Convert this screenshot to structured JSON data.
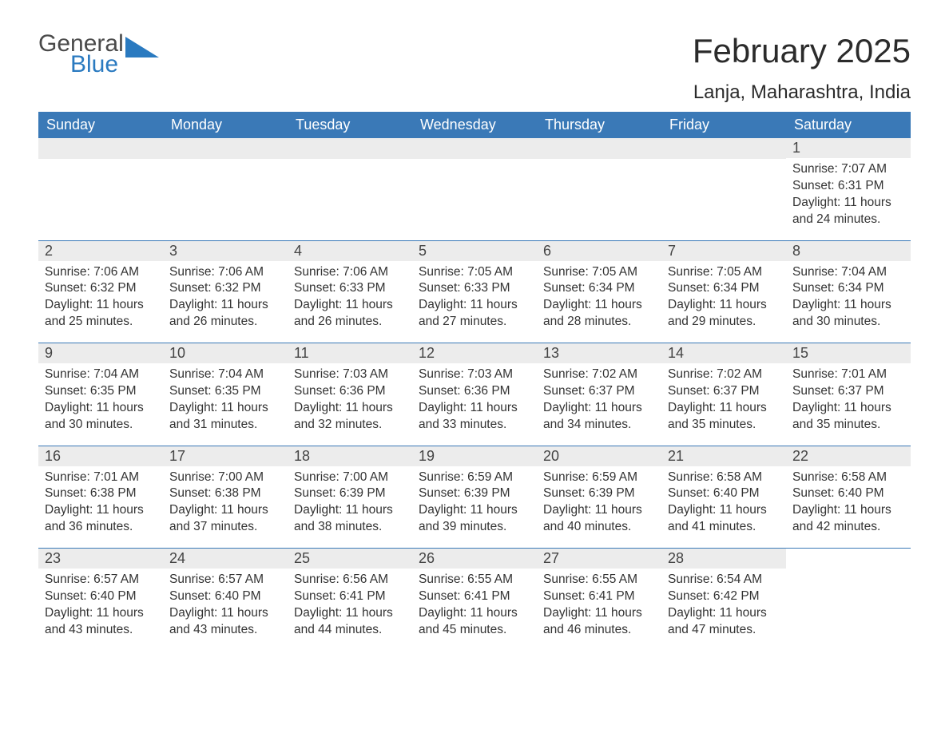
{
  "brand": {
    "word1": "General",
    "word2": "Blue",
    "accent_color": "#2a7ac0"
  },
  "title": "February 2025",
  "location": "Lanja, Maharashtra, India",
  "colors": {
    "header_bg": "#3a79b7",
    "header_text": "#ffffff",
    "daynum_bg": "#ececec",
    "text": "#333333",
    "rule": "#3a79b7",
    "page_bg": "#ffffff"
  },
  "day_headers": [
    "Sunday",
    "Monday",
    "Tuesday",
    "Wednesday",
    "Thursday",
    "Friday",
    "Saturday"
  ],
  "weeks": [
    [
      null,
      null,
      null,
      null,
      null,
      null,
      {
        "n": "1",
        "sunrise": "Sunrise: 7:07 AM",
        "sunset": "Sunset: 6:31 PM",
        "daylight": "Daylight: 11 hours and 24 minutes."
      }
    ],
    [
      {
        "n": "2",
        "sunrise": "Sunrise: 7:06 AM",
        "sunset": "Sunset: 6:32 PM",
        "daylight": "Daylight: 11 hours and 25 minutes."
      },
      {
        "n": "3",
        "sunrise": "Sunrise: 7:06 AM",
        "sunset": "Sunset: 6:32 PM",
        "daylight": "Daylight: 11 hours and 26 minutes."
      },
      {
        "n": "4",
        "sunrise": "Sunrise: 7:06 AM",
        "sunset": "Sunset: 6:33 PM",
        "daylight": "Daylight: 11 hours and 26 minutes."
      },
      {
        "n": "5",
        "sunrise": "Sunrise: 7:05 AM",
        "sunset": "Sunset: 6:33 PM",
        "daylight": "Daylight: 11 hours and 27 minutes."
      },
      {
        "n": "6",
        "sunrise": "Sunrise: 7:05 AM",
        "sunset": "Sunset: 6:34 PM",
        "daylight": "Daylight: 11 hours and 28 minutes."
      },
      {
        "n": "7",
        "sunrise": "Sunrise: 7:05 AM",
        "sunset": "Sunset: 6:34 PM",
        "daylight": "Daylight: 11 hours and 29 minutes."
      },
      {
        "n": "8",
        "sunrise": "Sunrise: 7:04 AM",
        "sunset": "Sunset: 6:34 PM",
        "daylight": "Daylight: 11 hours and 30 minutes."
      }
    ],
    [
      {
        "n": "9",
        "sunrise": "Sunrise: 7:04 AM",
        "sunset": "Sunset: 6:35 PM",
        "daylight": "Daylight: 11 hours and 30 minutes."
      },
      {
        "n": "10",
        "sunrise": "Sunrise: 7:04 AM",
        "sunset": "Sunset: 6:35 PM",
        "daylight": "Daylight: 11 hours and 31 minutes."
      },
      {
        "n": "11",
        "sunrise": "Sunrise: 7:03 AM",
        "sunset": "Sunset: 6:36 PM",
        "daylight": "Daylight: 11 hours and 32 minutes."
      },
      {
        "n": "12",
        "sunrise": "Sunrise: 7:03 AM",
        "sunset": "Sunset: 6:36 PM",
        "daylight": "Daylight: 11 hours and 33 minutes."
      },
      {
        "n": "13",
        "sunrise": "Sunrise: 7:02 AM",
        "sunset": "Sunset: 6:37 PM",
        "daylight": "Daylight: 11 hours and 34 minutes."
      },
      {
        "n": "14",
        "sunrise": "Sunrise: 7:02 AM",
        "sunset": "Sunset: 6:37 PM",
        "daylight": "Daylight: 11 hours and 35 minutes."
      },
      {
        "n": "15",
        "sunrise": "Sunrise: 7:01 AM",
        "sunset": "Sunset: 6:37 PM",
        "daylight": "Daylight: 11 hours and 35 minutes."
      }
    ],
    [
      {
        "n": "16",
        "sunrise": "Sunrise: 7:01 AM",
        "sunset": "Sunset: 6:38 PM",
        "daylight": "Daylight: 11 hours and 36 minutes."
      },
      {
        "n": "17",
        "sunrise": "Sunrise: 7:00 AM",
        "sunset": "Sunset: 6:38 PM",
        "daylight": "Daylight: 11 hours and 37 minutes."
      },
      {
        "n": "18",
        "sunrise": "Sunrise: 7:00 AM",
        "sunset": "Sunset: 6:39 PM",
        "daylight": "Daylight: 11 hours and 38 minutes."
      },
      {
        "n": "19",
        "sunrise": "Sunrise: 6:59 AM",
        "sunset": "Sunset: 6:39 PM",
        "daylight": "Daylight: 11 hours and 39 minutes."
      },
      {
        "n": "20",
        "sunrise": "Sunrise: 6:59 AM",
        "sunset": "Sunset: 6:39 PM",
        "daylight": "Daylight: 11 hours and 40 minutes."
      },
      {
        "n": "21",
        "sunrise": "Sunrise: 6:58 AM",
        "sunset": "Sunset: 6:40 PM",
        "daylight": "Daylight: 11 hours and 41 minutes."
      },
      {
        "n": "22",
        "sunrise": "Sunrise: 6:58 AM",
        "sunset": "Sunset: 6:40 PM",
        "daylight": "Daylight: 11 hours and 42 minutes."
      }
    ],
    [
      {
        "n": "23",
        "sunrise": "Sunrise: 6:57 AM",
        "sunset": "Sunset: 6:40 PM",
        "daylight": "Daylight: 11 hours and 43 minutes."
      },
      {
        "n": "24",
        "sunrise": "Sunrise: 6:57 AM",
        "sunset": "Sunset: 6:40 PM",
        "daylight": "Daylight: 11 hours and 43 minutes."
      },
      {
        "n": "25",
        "sunrise": "Sunrise: 6:56 AM",
        "sunset": "Sunset: 6:41 PM",
        "daylight": "Daylight: 11 hours and 44 minutes."
      },
      {
        "n": "26",
        "sunrise": "Sunrise: 6:55 AM",
        "sunset": "Sunset: 6:41 PM",
        "daylight": "Daylight: 11 hours and 45 minutes."
      },
      {
        "n": "27",
        "sunrise": "Sunrise: 6:55 AM",
        "sunset": "Sunset: 6:41 PM",
        "daylight": "Daylight: 11 hours and 46 minutes."
      },
      {
        "n": "28",
        "sunrise": "Sunrise: 6:54 AM",
        "sunset": "Sunset: 6:42 PM",
        "daylight": "Daylight: 11 hours and 47 minutes."
      },
      null
    ]
  ]
}
